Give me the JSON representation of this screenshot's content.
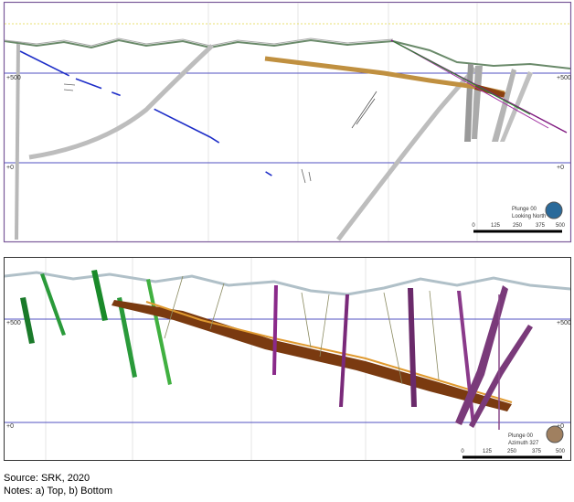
{
  "panels": [
    {
      "elevation_labels": [
        "+500",
        "+500",
        "+0",
        "+0"
      ],
      "view": [
        "Plunge 00",
        "Looking North"
      ],
      "scale": [
        "0",
        "125",
        "250",
        "375",
        "500"
      ]
    },
    {
      "elevation_labels": [
        "+500",
        "+500",
        "+0",
        "+0"
      ],
      "view": [
        "Plunge 00",
        "Azimuth 327"
      ],
      "scale": [
        "0",
        "125",
        "250",
        "375",
        "500"
      ]
    }
  ],
  "caption": {
    "source": "Source: SRK, 2020",
    "notes": "Notes: a) Top, b) Bottom"
  }
}
